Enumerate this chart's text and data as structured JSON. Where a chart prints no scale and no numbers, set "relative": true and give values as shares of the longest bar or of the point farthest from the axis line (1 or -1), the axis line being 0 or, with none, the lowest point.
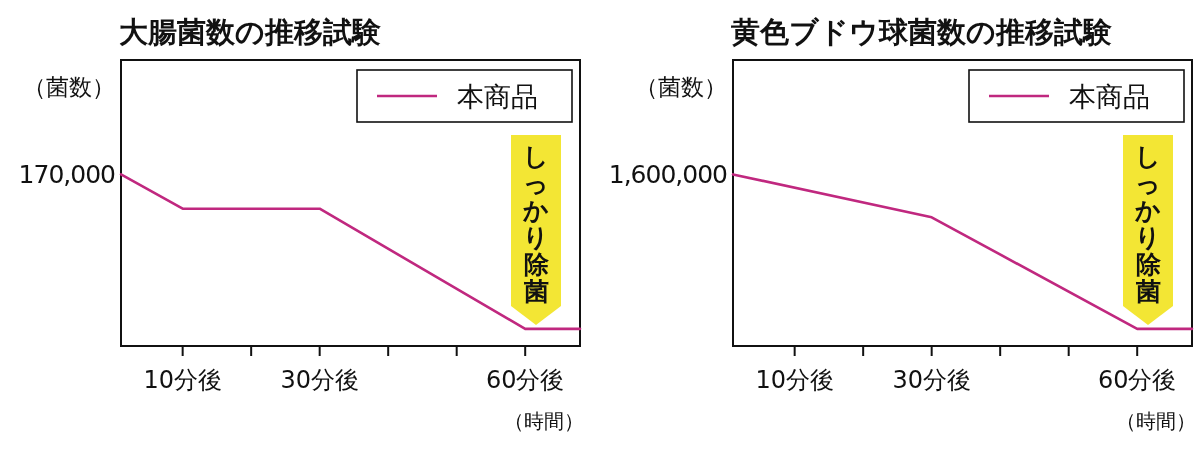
{
  "chart_data": [
    {
      "type": "line",
      "title": "大腸菌数の推移試験",
      "ylabel": "（菌数）",
      "xlabel": "（時間）",
      "relative": true,
      "xlim": [
        1,
        68
      ],
      "xticks": [
        {
          "value": 10,
          "label": "10分後"
        },
        {
          "value": 20,
          "label": null
        },
        {
          "value": 30,
          "label": "30分後"
        },
        {
          "value": 40,
          "label": null
        },
        {
          "value": 50,
          "label": null
        },
        {
          "value": 60,
          "label": "60分後"
        }
      ],
      "series": [
        {
          "name": "本商品",
          "color": "#c0287f",
          "x": [
            1,
            10,
            30,
            60,
            68
          ],
          "values": [
            1,
            0.8,
            0.8,
            0.1,
            0.1
          ]
        }
      ],
      "annotations": [
        {
          "text": "170,000",
          "x": 1,
          "y": 1
        },
        "しっかり除菌"
      ],
      "legend": "top right"
    },
    {
      "type": "line",
      "title": "黄色ブドウ球菌数の推移試験",
      "ylabel": "（菌数）",
      "xlabel": "（時間）",
      "relative": true,
      "xlim": [
        1,
        68
      ],
      "xticks": [
        {
          "value": 10,
          "label": "10分後"
        },
        {
          "value": 20,
          "label": null
        },
        {
          "value": 30,
          "label": "30分後"
        },
        {
          "value": 40,
          "label": null
        },
        {
          "value": 50,
          "label": null
        },
        {
          "value": 60,
          "label": "60分後"
        }
      ],
      "series": [
        {
          "name": "本商品",
          "color": "#c0287f",
          "x": [
            1,
            30,
            60,
            68
          ],
          "values": [
            1,
            0.75,
            0.1,
            0.1
          ]
        }
      ],
      "annotations": [
        {
          "text": "1,600,000",
          "x": 1,
          "y": 1
        },
        "しっかり除菌"
      ],
      "legend": "top right"
    }
  ]
}
